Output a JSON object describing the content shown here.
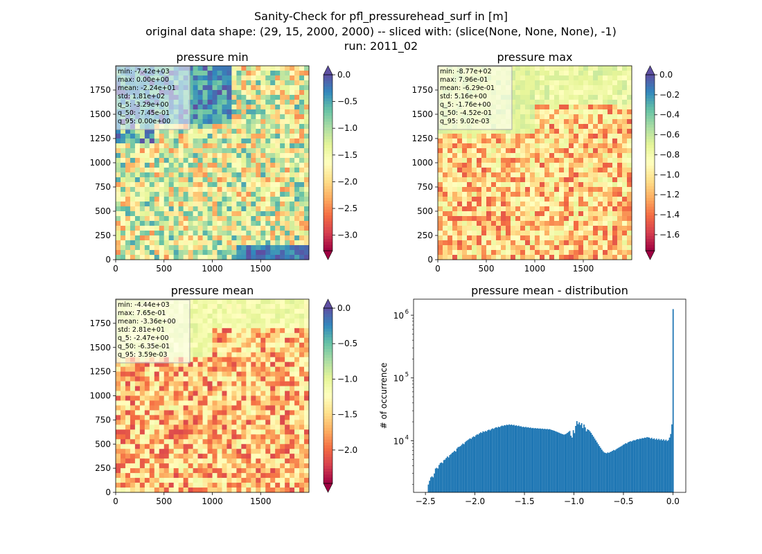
{
  "figure": {
    "title_lines": [
      "Sanity-Check for pfl_pressurehead_surf in [m]",
      "original data shape: (29, 15, 2000, 2000) -- sliced with: (slice(None, None, None), -1)",
      "run: 2011_02"
    ]
  },
  "chart_data": [
    {
      "type": "heatmap",
      "title": "pressure min",
      "xlim": [
        0,
        2000
      ],
      "ylim": [
        0,
        2000
      ],
      "x_ticks": [
        0,
        500,
        1000,
        1500
      ],
      "y_ticks": [
        0,
        250,
        500,
        750,
        1000,
        1250,
        1500,
        1750
      ],
      "colorbar": {
        "range": [
          -3.29,
          0.0
        ],
        "ticks": [
          "0.0",
          "−0.5",
          "−1.0",
          "−1.5",
          "−2.0",
          "−2.5",
          "−3.0"
        ],
        "extend_min": true,
        "extend_max": true,
        "cmap": "Spectral"
      },
      "stats": [
        "min: -7.42e+03",
        "max: 0.00e+00",
        "mean: -2.24e+01",
        "std: 1.81e+02",
        "q_5: -3.29e+00",
        "q_50: -7.45e-01",
        "q_95: 0.00e+00"
      ]
    },
    {
      "type": "heatmap",
      "title": "pressure max",
      "xlim": [
        0,
        2000
      ],
      "ylim": [
        0,
        2000
      ],
      "x_ticks": [
        0,
        500,
        1000,
        1500
      ],
      "y_ticks": [
        0,
        250,
        500,
        750,
        1000,
        1250,
        1500,
        1750
      ],
      "colorbar": {
        "range": [
          -1.76,
          0.0
        ],
        "ticks": [
          "0.0",
          "−0.2",
          "−0.4",
          "−0.6",
          "−0.8",
          "−1.0",
          "−1.2",
          "−1.4",
          "−1.6"
        ],
        "extend_min": true,
        "extend_max": true,
        "cmap": "Spectral"
      },
      "stats": [
        "min: -8.77e+02",
        "max: 7.96e-01",
        "mean: -6.29e-01",
        "std: 5.16e+00",
        "q_5: -1.76e+00",
        "q_50: -4.52e-01",
        "q_95: 9.02e-03"
      ]
    },
    {
      "type": "heatmap",
      "title": "pressure mean",
      "xlim": [
        0,
        2000
      ],
      "ylim": [
        0,
        2000
      ],
      "x_ticks": [
        0,
        500,
        1000,
        1500
      ],
      "y_ticks": [
        0,
        250,
        500,
        750,
        1000,
        1250,
        1500,
        1750
      ],
      "colorbar": {
        "range": [
          -2.47,
          0.0
        ],
        "ticks": [
          "0.0",
          "−0.5",
          "−1.0",
          "−1.5",
          "−2.0"
        ],
        "extend_min": true,
        "extend_max": true,
        "cmap": "Spectral"
      },
      "stats": [
        "min: -4.44e+03",
        "max: 7.65e-01",
        "mean: -3.36e+00",
        "std: 2.81e+01",
        "q_5: -2.47e+00",
        "q_50: -6.35e-01",
        "q_95: 3.59e-03"
      ]
    },
    {
      "type": "bar",
      "title": "pressure mean - distribution",
      "xlabel": "",
      "ylabel": "# of occurrence",
      "xlim": [
        -2.62,
        0.13
      ],
      "yscale": "log",
      "ylim": [
        1500,
        1800000
      ],
      "x_ticks": [
        -2.5,
        -2.0,
        -1.5,
        -1.0,
        -0.5,
        0.0
      ],
      "x_tick_labels": [
        "−2.5",
        "−2.0",
        "−1.5",
        "−1.0",
        "−0.5",
        "0.0"
      ],
      "y_ticks": [
        10000,
        100000,
        1000000
      ],
      "y_tick_labels": [
        "10",
        "10",
        "10"
      ],
      "y_tick_exponents": [
        "4",
        "5",
        "6"
      ],
      "bin_width": 0.0124,
      "color": "#1f77b4",
      "bins": [
        [
          -2.47,
          2000
        ],
        [
          -2.458,
          2300
        ],
        [
          -2.446,
          2600
        ],
        [
          -2.434,
          2700
        ],
        [
          -2.422,
          2600
        ],
        [
          -2.41,
          3000
        ],
        [
          -2.398,
          3600
        ],
        [
          -2.386,
          3700
        ],
        [
          -2.374,
          3600
        ],
        [
          -2.362,
          4100
        ],
        [
          -2.35,
          4400
        ],
        [
          -2.338,
          4500
        ],
        [
          -2.326,
          4400
        ],
        [
          -2.314,
          4900
        ],
        [
          -2.302,
          5000
        ],
        [
          -2.29,
          5300
        ],
        [
          -2.278,
          5600
        ],
        [
          -2.266,
          5400
        ],
        [
          -2.254,
          5900
        ],
        [
          -2.242,
          6100
        ],
        [
          -2.23,
          6400
        ],
        [
          -2.218,
          6600
        ],
        [
          -2.206,
          6900
        ],
        [
          -2.194,
          6700
        ],
        [
          -2.182,
          7500
        ],
        [
          -2.17,
          7900
        ],
        [
          -2.158,
          8000
        ],
        [
          -2.146,
          8200
        ],
        [
          -2.134,
          8600
        ],
        [
          -2.122,
          9000
        ],
        [
          -2.11,
          8800
        ],
        [
          -2.098,
          9500
        ],
        [
          -2.086,
          9900
        ],
        [
          -2.074,
          10200
        ],
        [
          -2.062,
          10500
        ],
        [
          -2.05,
          10900
        ],
        [
          -2.038,
          10700
        ],
        [
          -2.026,
          11300
        ],
        [
          -2.014,
          11700
        ],
        [
          -2.002,
          11500
        ],
        [
          -1.99,
          12200
        ],
        [
          -1.978,
          12600
        ],
        [
          -1.966,
          12500
        ],
        [
          -1.954,
          13100
        ],
        [
          -1.942,
          13600
        ],
        [
          -1.93,
          13300
        ],
        [
          -1.918,
          14100
        ],
        [
          -1.906,
          13800
        ],
        [
          -1.894,
          14300
        ],
        [
          -1.882,
          14000
        ],
        [
          -1.87,
          14700
        ],
        [
          -1.858,
          15000
        ],
        [
          -1.846,
          14600
        ],
        [
          -1.834,
          15300
        ],
        [
          -1.822,
          15700
        ],
        [
          -1.81,
          15400
        ],
        [
          -1.798,
          16000
        ],
        [
          -1.786,
          16400
        ],
        [
          -1.774,
          16100
        ],
        [
          -1.762,
          16700
        ],
        [
          -1.75,
          16400
        ],
        [
          -1.738,
          17000
        ],
        [
          -1.726,
          17400
        ],
        [
          -1.714,
          17100
        ],
        [
          -1.702,
          17700
        ],
        [
          -1.69,
          17500
        ],
        [
          -1.678,
          18000
        ],
        [
          -1.666,
          17700
        ],
        [
          -1.654,
          18200
        ],
        [
          -1.642,
          17800
        ],
        [
          -1.63,
          18100
        ],
        [
          -1.618,
          17600
        ],
        [
          -1.606,
          17900
        ],
        [
          -1.594,
          17300
        ],
        [
          -1.582,
          17600
        ],
        [
          -1.57,
          17100
        ],
        [
          -1.558,
          17400
        ],
        [
          -1.546,
          16900
        ],
        [
          -1.534,
          17000
        ],
        [
          -1.522,
          16500
        ],
        [
          -1.51,
          16700
        ],
        [
          -1.498,
          16300
        ],
        [
          -1.486,
          16600
        ],
        [
          -1.474,
          16200
        ],
        [
          -1.462,
          16400
        ],
        [
          -1.45,
          16000
        ],
        [
          -1.438,
          16200
        ],
        [
          -1.426,
          15800
        ],
        [
          -1.414,
          16000
        ],
        [
          -1.402,
          15700
        ],
        [
          -1.39,
          15900
        ],
        [
          -1.378,
          15600
        ],
        [
          -1.366,
          15800
        ],
        [
          -1.354,
          15500
        ],
        [
          -1.342,
          15700
        ],
        [
          -1.33,
          15400
        ],
        [
          -1.318,
          15600
        ],
        [
          -1.306,
          15300
        ],
        [
          -1.294,
          15500
        ],
        [
          -1.282,
          15200
        ],
        [
          -1.27,
          15400
        ],
        [
          -1.258,
          15100
        ],
        [
          -1.246,
          15300
        ],
        [
          -1.234,
          15000
        ],
        [
          -1.222,
          14800
        ],
        [
          -1.21,
          14600
        ],
        [
          -1.198,
          14400
        ],
        [
          -1.186,
          14100
        ],
        [
          -1.174,
          13900
        ],
        [
          -1.162,
          13600
        ],
        [
          -1.15,
          13400
        ],
        [
          -1.138,
          13100
        ],
        [
          -1.126,
          12900
        ],
        [
          -1.114,
          12700
        ],
        [
          -1.102,
          12500
        ],
        [
          -1.09,
          12600
        ],
        [
          -1.078,
          12900
        ],
        [
          -1.066,
          13300
        ],
        [
          -1.054,
          13800
        ],
        [
          -1.042,
          14300
        ],
        [
          -1.03,
          12000
        ],
        [
          -1.018,
          11200
        ],
        [
          -1.006,
          14700
        ],
        [
          -0.994,
          13200
        ],
        [
          -0.982,
          17200
        ],
        [
          -0.97,
          20500
        ],
        [
          -0.958,
          18300
        ],
        [
          -0.946,
          19600
        ],
        [
          -0.934,
          17800
        ],
        [
          -0.922,
          19000
        ],
        [
          -0.91,
          15900
        ],
        [
          -0.898,
          18100
        ],
        [
          -0.886,
          16300
        ],
        [
          -0.874,
          14100
        ],
        [
          -0.862,
          15200
        ],
        [
          -0.85,
          14800
        ],
        [
          -0.838,
          14100
        ],
        [
          -0.826,
          13300
        ],
        [
          -0.814,
          12400
        ],
        [
          -0.802,
          11600
        ],
        [
          -0.79,
          10800
        ],
        [
          -0.778,
          10100
        ],
        [
          -0.766,
          9400
        ],
        [
          -0.754,
          8800
        ],
        [
          -0.742,
          8200
        ],
        [
          -0.73,
          7700
        ],
        [
          -0.718,
          7200
        ],
        [
          -0.706,
          6800
        ],
        [
          -0.694,
          6500
        ],
        [
          -0.682,
          6400
        ],
        [
          -0.67,
          6300
        ],
        [
          -0.658,
          6500
        ],
        [
          -0.646,
          6400
        ],
        [
          -0.634,
          6600
        ],
        [
          -0.622,
          6700
        ],
        [
          -0.61,
          6900
        ],
        [
          -0.598,
          7100
        ],
        [
          -0.586,
          7000
        ],
        [
          -0.574,
          7300
        ],
        [
          -0.562,
          7500
        ],
        [
          -0.55,
          7700
        ],
        [
          -0.538,
          7900
        ],
        [
          -0.526,
          8100
        ],
        [
          -0.514,
          8300
        ],
        [
          -0.502,
          8600
        ],
        [
          -0.49,
          8800
        ],
        [
          -0.478,
          9100
        ],
        [
          -0.466,
          9000
        ],
        [
          -0.454,
          9400
        ],
        [
          -0.442,
          9600
        ],
        [
          -0.43,
          9800
        ],
        [
          -0.418,
          9700
        ],
        [
          -0.406,
          10000
        ],
        [
          -0.394,
          10200
        ],
        [
          -0.382,
          10100
        ],
        [
          -0.37,
          10400
        ],
        [
          -0.358,
          10600
        ],
        [
          -0.346,
          10500
        ],
        [
          -0.334,
          10800
        ],
        [
          -0.322,
          10700
        ],
        [
          -0.31,
          11000
        ],
        [
          -0.298,
          10900
        ],
        [
          -0.286,
          11200
        ],
        [
          -0.274,
          11100
        ],
        [
          -0.262,
          11400
        ],
        [
          -0.25,
          11300
        ],
        [
          -0.238,
          11200
        ],
        [
          -0.226,
          10800
        ],
        [
          -0.214,
          11100
        ],
        [
          -0.202,
          10600
        ],
        [
          -0.19,
          10900
        ],
        [
          -0.178,
          10400
        ],
        [
          -0.166,
          10800
        ],
        [
          -0.154,
          10300
        ],
        [
          -0.142,
          10700
        ],
        [
          -0.13,
          10200
        ],
        [
          -0.118,
          10600
        ],
        [
          -0.106,
          10100
        ],
        [
          -0.094,
          10500
        ],
        [
          -0.082,
          10000
        ],
        [
          -0.07,
          10400
        ],
        [
          -0.058,
          9900
        ],
        [
          -0.046,
          10200
        ],
        [
          -0.034,
          11200
        ],
        [
          -0.022,
          12800
        ],
        [
          -0.01,
          18200
        ],
        [
          0.002,
          1250000
        ]
      ]
    }
  ]
}
